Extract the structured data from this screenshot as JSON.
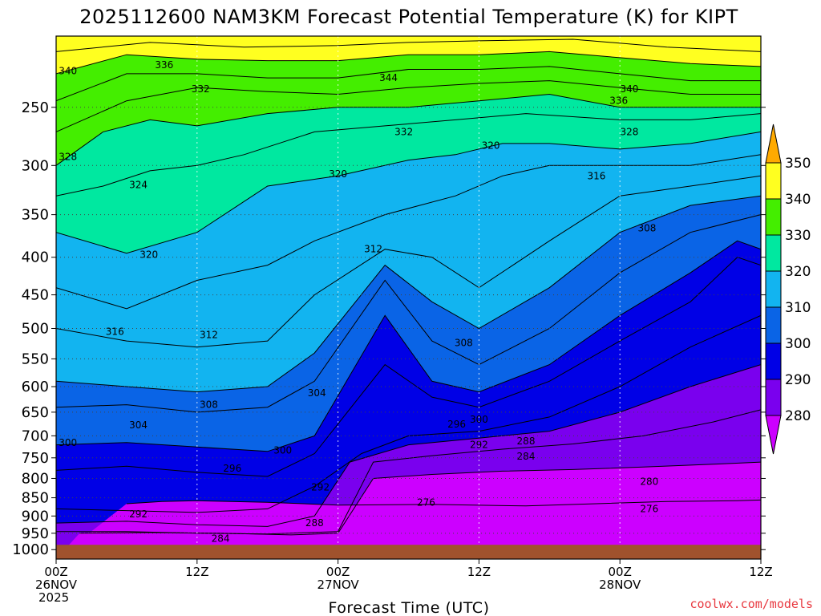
{
  "chart_data": {
    "type": "heatmap",
    "title": "2025112600 NAM3KM Forecast Potential Temperature (K) for KIPT",
    "xlabel": "Forecast Time (UTC)",
    "ylabel": "",
    "credit": "coolwx.com/models",
    "x_range_hours": [
      0,
      60
    ],
    "x_ticks": [
      {
        "hour": 0,
        "lines": [
          "00Z",
          "26NOV",
          "2025"
        ]
      },
      {
        "hour": 12,
        "lines": [
          "12Z"
        ]
      },
      {
        "hour": 24,
        "lines": [
          "00Z",
          "27NOV"
        ]
      },
      {
        "hour": 36,
        "lines": [
          "12Z"
        ]
      },
      {
        "hour": 48,
        "lines": [
          "00Z",
          "28NOV"
        ]
      },
      {
        "hour": 60,
        "lines": [
          "12Z"
        ]
      }
    ],
    "y_range_hPa": [
      1030,
      200
    ],
    "y_scale": "log",
    "y_ticks": [
      250,
      300,
      350,
      400,
      450,
      500,
      550,
      600,
      650,
      700,
      750,
      800,
      850,
      900,
      950,
      1000
    ],
    "colorbar": {
      "levels": [
        280,
        290,
        300,
        310,
        320,
        330,
        340,
        350
      ],
      "colors": [
        "#cc00ff",
        "#7a00ee",
        "#0000e6",
        "#0a64e6",
        "#12b4f0",
        "#00e8a0",
        "#44ee00",
        "#ffff20",
        "#ffaa00"
      ]
    },
    "contour_lines": [
      {
        "value": 276,
        "points": [
          [
            6,
            866
          ],
          [
            9,
            860
          ],
          [
            12,
            858
          ],
          [
            18,
            862
          ],
          [
            24,
            870
          ],
          [
            32,
            868
          ],
          [
            40,
            872
          ],
          [
            46,
            866
          ],
          [
            52,
            860
          ],
          [
            58,
            858
          ],
          [
            60,
            856
          ]
        ]
      },
      {
        "value": 280,
        "points": [
          [
            2,
            950
          ],
          [
            8,
            948
          ],
          [
            14,
            950
          ],
          [
            20,
            955
          ],
          [
            24,
            950
          ],
          [
            27,
            800
          ],
          [
            32,
            790
          ],
          [
            38,
            782
          ],
          [
            44,
            778
          ],
          [
            50,
            772
          ],
          [
            56,
            765
          ],
          [
            60,
            760
          ]
        ]
      },
      {
        "value": 284,
        "points": [
          [
            0,
            945
          ],
          [
            6,
            945
          ],
          [
            12,
            950
          ],
          [
            18,
            952
          ],
          [
            24,
            945
          ],
          [
            27,
            760
          ],
          [
            32,
            745
          ],
          [
            38,
            730
          ],
          [
            44,
            718
          ],
          [
            50,
            700
          ],
          [
            56,
            670
          ],
          [
            60,
            645
          ]
        ]
      },
      {
        "value": 288,
        "points": [
          [
            0,
            920
          ],
          [
            6,
            915
          ],
          [
            12,
            925
          ],
          [
            18,
            930
          ],
          [
            22,
            900
          ],
          [
            25,
            760
          ],
          [
            30,
            720
          ],
          [
            36,
            705
          ],
          [
            42,
            690
          ],
          [
            48,
            650
          ],
          [
            54,
            600
          ],
          [
            60,
            560
          ]
        ]
      },
      {
        "value": 292,
        "points": [
          [
            0,
            880
          ],
          [
            6,
            885
          ],
          [
            12,
            890
          ],
          [
            18,
            880
          ],
          [
            22,
            820
          ],
          [
            26,
            740
          ],
          [
            30,
            700
          ],
          [
            36,
            690
          ],
          [
            42,
            660
          ],
          [
            48,
            600
          ],
          [
            54,
            530
          ],
          [
            60,
            480
          ]
        ]
      },
      {
        "value": 296,
        "points": [
          [
            0,
            780
          ],
          [
            6,
            770
          ],
          [
            12,
            785
          ],
          [
            18,
            795
          ],
          [
            22,
            740
          ],
          [
            28,
            560
          ],
          [
            32,
            620
          ],
          [
            36,
            640
          ],
          [
            42,
            590
          ],
          [
            48,
            520
          ],
          [
            54,
            460
          ],
          [
            58,
            400
          ],
          [
            60,
            410
          ]
        ]
      },
      {
        "value": 300,
        "points": [
          [
            0,
            720
          ],
          [
            6,
            715
          ],
          [
            12,
            725
          ],
          [
            18,
            735
          ],
          [
            22,
            700
          ],
          [
            28,
            480
          ],
          [
            32,
            590
          ],
          [
            36,
            610
          ],
          [
            42,
            560
          ],
          [
            48,
            480
          ],
          [
            54,
            420
          ],
          [
            58,
            380
          ],
          [
            60,
            390
          ]
        ]
      },
      {
        "value": 304,
        "points": [
          [
            0,
            640
          ],
          [
            6,
            635
          ],
          [
            12,
            650
          ],
          [
            18,
            640
          ],
          [
            22,
            590
          ],
          [
            28,
            430
          ],
          [
            32,
            520
          ],
          [
            36,
            560
          ],
          [
            42,
            500
          ],
          [
            48,
            420
          ],
          [
            54,
            370
          ],
          [
            60,
            350
          ]
        ]
      },
      {
        "value": 308,
        "points": [
          [
            0,
            590
          ],
          [
            6,
            600
          ],
          [
            12,
            610
          ],
          [
            18,
            600
          ],
          [
            22,
            540
          ],
          [
            28,
            410
          ],
          [
            32,
            460
          ],
          [
            36,
            500
          ],
          [
            42,
            440
          ],
          [
            48,
            370
          ],
          [
            54,
            340
          ],
          [
            60,
            330
          ]
        ]
      },
      {
        "value": 312,
        "points": [
          [
            0,
            500
          ],
          [
            6,
            520
          ],
          [
            12,
            530
          ],
          [
            18,
            520
          ],
          [
            22,
            450
          ],
          [
            28,
            390
          ],
          [
            32,
            400
          ],
          [
            36,
            440
          ],
          [
            42,
            380
          ],
          [
            48,
            330
          ],
          [
            54,
            320
          ],
          [
            60,
            310
          ]
        ]
      },
      {
        "value": 316,
        "points": [
          [
            0,
            440
          ],
          [
            6,
            470
          ],
          [
            12,
            430
          ],
          [
            18,
            410
          ],
          [
            22,
            380
          ],
          [
            28,
            350
          ],
          [
            34,
            330
          ],
          [
            38,
            310
          ],
          [
            42,
            300
          ],
          [
            48,
            300
          ],
          [
            54,
            300
          ],
          [
            60,
            290
          ]
        ]
      },
      {
        "value": 320,
        "points": [
          [
            0,
            370
          ],
          [
            6,
            395
          ],
          [
            12,
            370
          ],
          [
            18,
            320
          ],
          [
            24,
            310
          ],
          [
            30,
            295
          ],
          [
            34,
            290
          ],
          [
            38,
            280
          ],
          [
            42,
            280
          ],
          [
            48,
            285
          ],
          [
            54,
            280
          ],
          [
            60,
            270
          ]
        ]
      },
      {
        "value": 324,
        "points": [
          [
            0,
            330
          ],
          [
            4,
            320
          ],
          [
            8,
            305
          ],
          [
            12,
            300
          ],
          [
            16,
            290
          ],
          [
            22,
            270
          ],
          [
            28,
            265
          ],
          [
            34,
            260
          ],
          [
            40,
            255
          ],
          [
            48,
            260
          ],
          [
            54,
            260
          ],
          [
            60,
            255
          ]
        ]
      },
      {
        "value": 328,
        "points": [
          [
            0,
            300
          ],
          [
            4,
            270
          ],
          [
            8,
            260
          ],
          [
            12,
            265
          ],
          [
            18,
            255
          ],
          [
            24,
            250
          ],
          [
            30,
            250
          ],
          [
            36,
            245
          ],
          [
            42,
            240
          ],
          [
            48,
            250
          ],
          [
            54,
            250
          ],
          [
            60,
            250
          ]
        ]
      },
      {
        "value": 332,
        "points": [
          [
            0,
            270
          ],
          [
            6,
            245
          ],
          [
            12,
            235
          ],
          [
            18,
            238
          ],
          [
            24,
            240
          ],
          [
            30,
            235
          ],
          [
            36,
            232
          ],
          [
            42,
            230
          ],
          [
            48,
            235
          ],
          [
            54,
            240
          ],
          [
            60,
            240
          ]
        ]
      },
      {
        "value": 336,
        "points": [
          [
            0,
            245
          ],
          [
            6,
            225
          ],
          [
            12,
            225
          ],
          [
            18,
            228
          ],
          [
            24,
            228
          ],
          [
            30,
            222
          ],
          [
            36,
            222
          ],
          [
            42,
            220
          ],
          [
            48,
            225
          ],
          [
            54,
            230
          ],
          [
            60,
            230
          ]
        ]
      },
      {
        "value": 340,
        "points": [
          [
            0,
            225
          ],
          [
            6,
            212
          ],
          [
            12,
            215
          ],
          [
            18,
            216
          ],
          [
            24,
            216
          ],
          [
            30,
            212
          ],
          [
            36,
            212
          ],
          [
            42,
            210
          ],
          [
            48,
            214
          ],
          [
            54,
            218
          ],
          [
            60,
            220
          ]
        ]
      },
      {
        "value": 344,
        "points": [
          [
            0,
            210
          ],
          [
            8,
            204
          ],
          [
            16,
            207
          ],
          [
            24,
            206
          ],
          [
            30,
            204
          ],
          [
            36,
            203
          ],
          [
            44,
            202
          ],
          [
            52,
            207
          ],
          [
            60,
            210
          ]
        ]
      }
    ],
    "contour_labels": [
      {
        "text": "340",
        "hour": 1.0,
        "p": 223
      },
      {
        "text": "336",
        "hour": 9.2,
        "p": 219
      },
      {
        "text": "332",
        "hour": 12.3,
        "p": 236
      },
      {
        "text": "344",
        "hour": 28.3,
        "p": 228
      },
      {
        "text": "340",
        "hour": 48.8,
        "p": 236
      },
      {
        "text": "336",
        "hour": 47.9,
        "p": 245
      },
      {
        "text": "332",
        "hour": 29.6,
        "p": 270
      },
      {
        "text": "328",
        "hour": 48.8,
        "p": 270
      },
      {
        "text": "320",
        "hour": 37.0,
        "p": 282
      },
      {
        "text": "316",
        "hour": 46.0,
        "p": 310
      },
      {
        "text": "328",
        "hour": 1.0,
        "p": 292
      },
      {
        "text": "324",
        "hour": 7.0,
        "p": 319
      },
      {
        "text": "320",
        "hour": 24.0,
        "p": 308
      },
      {
        "text": "308",
        "hour": 50.3,
        "p": 365
      },
      {
        "text": "320",
        "hour": 7.9,
        "p": 397
      },
      {
        "text": "312",
        "hour": 27.0,
        "p": 390
      },
      {
        "text": "316",
        "hour": 5.0,
        "p": 505
      },
      {
        "text": "312",
        "hour": 13.0,
        "p": 510
      },
      {
        "text": "308",
        "hour": 34.7,
        "p": 523
      },
      {
        "text": "304",
        "hour": 22.2,
        "p": 612
      },
      {
        "text": "308",
        "hour": 13.0,
        "p": 635
      },
      {
        "text": "300",
        "hour": 36.0,
        "p": 665
      },
      {
        "text": "296",
        "hour": 34.1,
        "p": 675
      },
      {
        "text": "304",
        "hour": 7.0,
        "p": 677
      },
      {
        "text": "288",
        "hour": 40.0,
        "p": 712
      },
      {
        "text": "292",
        "hour": 36.0,
        "p": 720
      },
      {
        "text": "300",
        "hour": 1.0,
        "p": 715
      },
      {
        "text": "300",
        "hour": 19.3,
        "p": 733
      },
      {
        "text": "284",
        "hour": 40.0,
        "p": 747
      },
      {
        "text": "296",
        "hour": 15.0,
        "p": 775
      },
      {
        "text": "280",
        "hour": 50.5,
        "p": 808
      },
      {
        "text": "292",
        "hour": 22.5,
        "p": 823
      },
      {
        "text": "276",
        "hour": 31.5,
        "p": 863
      },
      {
        "text": "276",
        "hour": 50.5,
        "p": 880
      },
      {
        "text": "292",
        "hour": 7.0,
        "p": 895
      },
      {
        "text": "288",
        "hour": 22.0,
        "p": 920
      },
      {
        "text": "284",
        "hour": 14.0,
        "p": 966
      }
    ],
    "surface": {
      "hour_start": 0,
      "hour_end": 60,
      "p_top": 985,
      "p_bottom": 1030,
      "color": "#a0522d"
    }
  }
}
